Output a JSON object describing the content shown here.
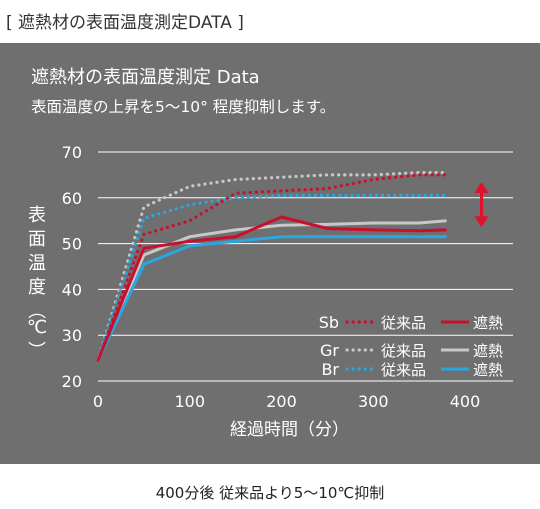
{
  "header": {
    "label": "[ 遮熱材の表面温度測定DATA ]"
  },
  "panel": {
    "title": "遮熱材の表面温度測定 Data",
    "subtitle": "表面温度の上昇を5～10° 程度抑制します。"
  },
  "footer": {
    "caption": "400分後 従来品より5～10℃抑制"
  },
  "colors": {
    "panel_bg": "#6f6f6f",
    "grid": "#ffffff",
    "sb": "#c8102e",
    "gr": "#c8c8c8",
    "br": "#2aa6e0",
    "arrow": "#e0102e"
  },
  "chart_data": {
    "type": "line",
    "xlabel": "経過時間（分）",
    "ylabel": "表面温度（℃）",
    "xlim": [
      0,
      400
    ],
    "ylim": [
      20,
      70
    ],
    "xticks": [
      "0",
      "100",
      "200",
      "300",
      "400"
    ],
    "yticks": [
      "20",
      "30",
      "40",
      "50",
      "60",
      "70"
    ],
    "grid": true,
    "legend_position": "lower-right",
    "legend_groups": [
      {
        "prefix": "Sb",
        "conventional": "従来品",
        "shield": "遮熱"
      },
      {
        "prefix": "Gr",
        "conventional": "従来品",
        "shield": "遮熱"
      },
      {
        "prefix": "Br",
        "conventional": "従来品",
        "shield": "遮熱"
      }
    ],
    "annotation": {
      "type": "double-arrow",
      "x": 418,
      "y_range": [
        54,
        63
      ]
    },
    "series": [
      {
        "group": "Sb",
        "kind": "conventional",
        "style": "dotted",
        "color": "#c8102e",
        "x": [
          0,
          50,
          100,
          150,
          200,
          250,
          300,
          350,
          380
        ],
        "y": [
          24.5,
          52,
          55,
          61,
          61.5,
          62,
          64,
          65,
          65
        ]
      },
      {
        "group": "Sb",
        "kind": "shield",
        "style": "solid",
        "color": "#c8102e",
        "x": [
          0,
          50,
          100,
          150,
          200,
          250,
          300,
          350,
          380
        ],
        "y": [
          24.5,
          49,
          50.5,
          51.5,
          55.8,
          53.3,
          53,
          52.8,
          53
        ]
      },
      {
        "group": "Gr",
        "kind": "conventional",
        "style": "dotted",
        "color": "#c8c8c8",
        "x": [
          0,
          50,
          100,
          150,
          200,
          250,
          300,
          350,
          380
        ],
        "y": [
          24.5,
          58,
          62.5,
          64,
          64.5,
          65,
          65,
          65.5,
          65.5
        ]
      },
      {
        "group": "Gr",
        "kind": "shield",
        "style": "solid",
        "color": "#c8c8c8",
        "x": [
          0,
          50,
          100,
          150,
          200,
          250,
          300,
          350,
          380
        ],
        "y": [
          24.5,
          47.5,
          51.5,
          53,
          54,
          54.2,
          54.5,
          54.5,
          55
        ]
      },
      {
        "group": "Br",
        "kind": "conventional",
        "style": "dotted",
        "color": "#2aa6e0",
        "x": [
          0,
          50,
          100,
          150,
          200,
          250,
          300,
          350,
          380
        ],
        "y": [
          24.5,
          55.5,
          58.5,
          60,
          60.5,
          60.5,
          60.5,
          60.5,
          60.5
        ]
      },
      {
        "group": "Br",
        "kind": "shield",
        "style": "solid",
        "color": "#2aa6e0",
        "x": [
          0,
          50,
          100,
          150,
          200,
          250,
          300,
          350,
          380
        ],
        "y": [
          24.5,
          45.5,
          49.5,
          50.5,
          51.5,
          51.5,
          51.5,
          51.5,
          51.5
        ]
      }
    ]
  }
}
